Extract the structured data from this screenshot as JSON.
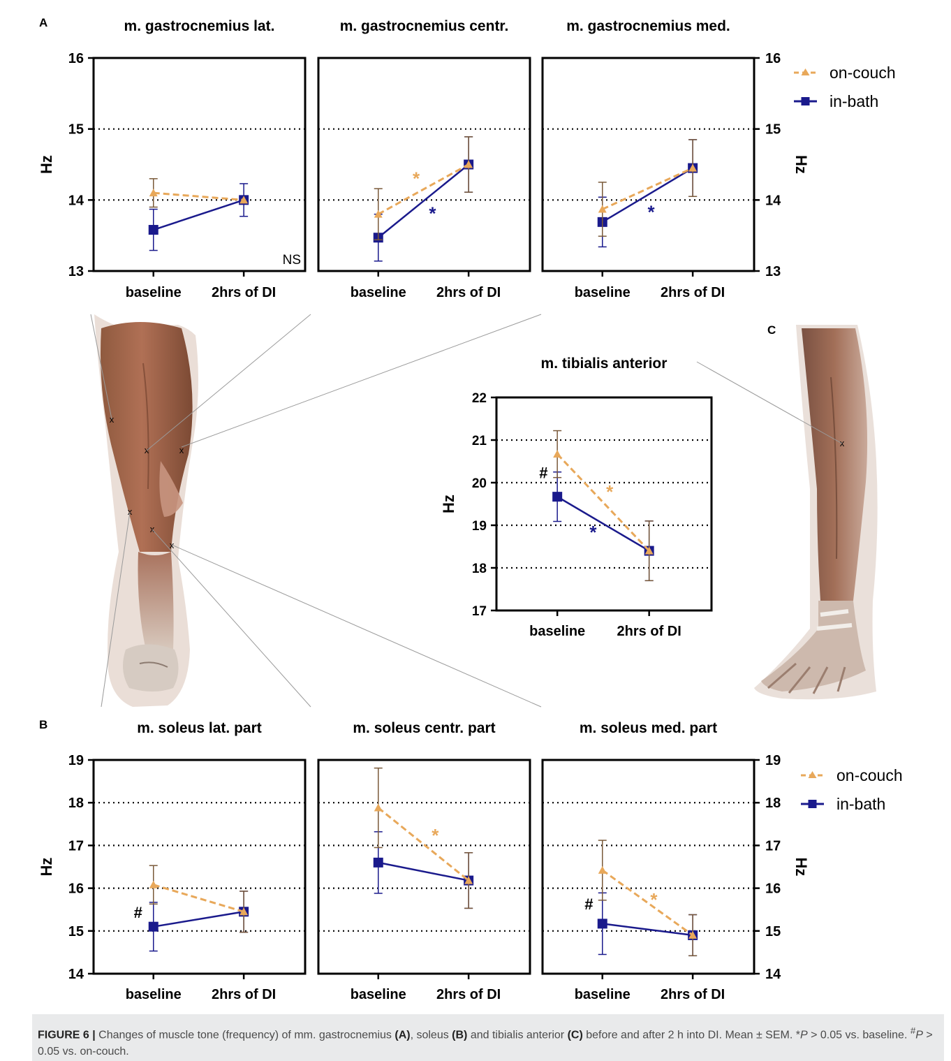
{
  "chart_data": [
    {
      "id": "A1",
      "panel_letter": "A",
      "type": "line",
      "title": "m. gastrocnemius lat.",
      "categories": [
        "baseline",
        "2hrs of DI"
      ],
      "ylabel": "Hz",
      "ylim": [
        13,
        16
      ],
      "yticks": [
        13,
        14,
        15,
        16
      ],
      "grid": "horizontal dotted",
      "note": "NS",
      "series": [
        {
          "name": "on-couch",
          "values": [
            14.1,
            14.0
          ],
          "err": [
            0.2,
            0.0
          ]
        },
        {
          "name": "in-bath",
          "values": [
            13.58,
            14.0
          ],
          "err": [
            0.29,
            0.23
          ]
        }
      ]
    },
    {
      "id": "A2",
      "type": "line",
      "title": "m. gastrocnemius centr.",
      "categories": [
        "baseline",
        "2hrs of DI"
      ],
      "ylim": [
        13,
        16
      ],
      "yticks": [
        13,
        14,
        15,
        16
      ],
      "grid": "horizontal dotted",
      "series": [
        {
          "name": "on-couch",
          "values": [
            13.8,
            14.5
          ],
          "err": [
            0.36,
            0.39
          ]
        },
        {
          "name": "in-bath",
          "values": [
            13.47,
            14.5
          ],
          "err": [
            0.33,
            0.39
          ]
        }
      ],
      "annotations": [
        {
          "text": "*",
          "series": "on-couch",
          "x": 0.42,
          "y": 14.28
        },
        {
          "text": "*",
          "series": "in-bath",
          "x": 0.6,
          "y": 13.79
        }
      ]
    },
    {
      "id": "A3",
      "type": "line",
      "title": "m. gastrocnemius med.",
      "categories": [
        "baseline",
        "2hrs of DI"
      ],
      "ylabel": "Hz",
      "ylim": [
        13,
        16
      ],
      "yticks": [
        13,
        14,
        15,
        16
      ],
      "grid": "horizontal dotted",
      "legend": {
        "position": "right",
        "entries": [
          "on-couch",
          "in-bath"
        ]
      },
      "series": [
        {
          "name": "on-couch",
          "values": [
            13.87,
            14.45
          ],
          "err": [
            0.38,
            0.4
          ]
        },
        {
          "name": "in-bath",
          "values": [
            13.69,
            14.45
          ],
          "err": [
            0.35,
            0.4
          ]
        }
      ],
      "annotations": [
        {
          "text": "*",
          "series": "in-bath",
          "x": 0.54,
          "y": 13.81
        }
      ]
    },
    {
      "id": "C",
      "panel_letter": "C",
      "type": "line",
      "title": "m. tibialis anterior",
      "categories": [
        "baseline",
        "2hrs of DI"
      ],
      "ylabel": "Hz",
      "ylim": [
        17,
        22
      ],
      "yticks": [
        17,
        18,
        19,
        20,
        21,
        22
      ],
      "grid": "horizontal dotted",
      "series": [
        {
          "name": "on-couch",
          "values": [
            20.67,
            18.4
          ],
          "err": [
            0.55,
            0.7
          ]
        },
        {
          "name": "in-bath",
          "values": [
            19.67,
            18.4
          ],
          "err": [
            0.58,
            0.7
          ]
        }
      ],
      "annotations": [
        {
          "text": "#",
          "series": "none",
          "x": -0.15,
          "y": 20.2
        },
        {
          "text": "*",
          "series": "on-couch",
          "x": 0.57,
          "y": 19.75
        },
        {
          "text": "*",
          "series": "in-bath",
          "x": 0.39,
          "y": 18.8
        }
      ]
    },
    {
      "id": "B1",
      "panel_letter": "B",
      "type": "line",
      "title": "m. soleus lat. part",
      "categories": [
        "baseline",
        "2hrs of DI"
      ],
      "ylabel": "Hz",
      "ylim": [
        14,
        19
      ],
      "yticks": [
        14,
        15,
        16,
        17,
        18,
        19
      ],
      "grid": "horizontal dotted",
      "series": [
        {
          "name": "on-couch",
          "values": [
            16.08,
            15.45
          ],
          "err": [
            0.45,
            0.48
          ]
        },
        {
          "name": "in-bath",
          "values": [
            15.1,
            15.45
          ],
          "err": [
            0.57,
            0.48
          ]
        }
      ],
      "annotations": [
        {
          "text": "#",
          "series": "none",
          "x": -0.17,
          "y": 15.4
        }
      ]
    },
    {
      "id": "B2",
      "type": "line",
      "title": "m. soleus centr. part",
      "categories": [
        "baseline",
        "2hrs of DI"
      ],
      "ylim": [
        14,
        19
      ],
      "yticks": [
        14,
        15,
        16,
        17,
        18,
        19
      ],
      "grid": "horizontal dotted",
      "series": [
        {
          "name": "on-couch",
          "values": [
            17.88,
            16.18
          ],
          "err": [
            0.93,
            0.65
          ]
        },
        {
          "name": "in-bath",
          "values": [
            16.6,
            16.18
          ],
          "err": [
            0.72,
            0.65
          ]
        }
      ],
      "annotations": [
        {
          "text": "*",
          "series": "on-couch",
          "x": 0.63,
          "y": 17.2
        }
      ]
    },
    {
      "id": "B3",
      "type": "line",
      "title": "m. soleus med. part",
      "categories": [
        "baseline",
        "2hrs of DI"
      ],
      "ylabel": "Hz",
      "ylim": [
        14,
        19
      ],
      "yticks": [
        14,
        15,
        16,
        17,
        18,
        19
      ],
      "grid": "horizontal dotted",
      "legend": {
        "position": "right",
        "entries": [
          "on-couch",
          "in-bath"
        ]
      },
      "series": [
        {
          "name": "on-couch",
          "values": [
            16.42,
            14.9
          ],
          "err": [
            0.7,
            0.48
          ]
        },
        {
          "name": "in-bath",
          "values": [
            15.17,
            14.9
          ],
          "err": [
            0.72,
            0.48
          ]
        }
      ],
      "annotations": [
        {
          "text": "#",
          "series": "none",
          "x": -0.15,
          "y": 15.6
        },
        {
          "text": "*",
          "series": "on-couch",
          "x": 0.57,
          "y": 15.7
        }
      ]
    }
  ],
  "legend": {
    "on_couch": "on-couch",
    "in_bath": "in-bath"
  },
  "colors": {
    "on_couch": "#e8a85a",
    "in_bath": "#1a1a8c",
    "axis": "#000000",
    "grid": "#000000"
  },
  "illustrations": {
    "posterior_leg": "posterior lower leg muscle illustration",
    "anterior_leg": "anterior lower leg muscle illustration"
  },
  "caption": {
    "label": "FIGURE 6 |",
    "text_1": " Changes of muscle tone (frequency) of mm. gastrocnemius ",
    "ref_a": "(A)",
    "text_2": ", soleus ",
    "ref_b": "(B)",
    "text_3": " and tibialis anterior ",
    "ref_c": "(C)",
    "text_4": " before and after 2 h into DI. Mean ± SEM. *",
    "p_1": "P",
    "text_5": " > 0.05 vs. baseline. ",
    "hash": "#",
    "p_2": "P",
    "text_6": " > 0.05 vs. on-couch."
  }
}
